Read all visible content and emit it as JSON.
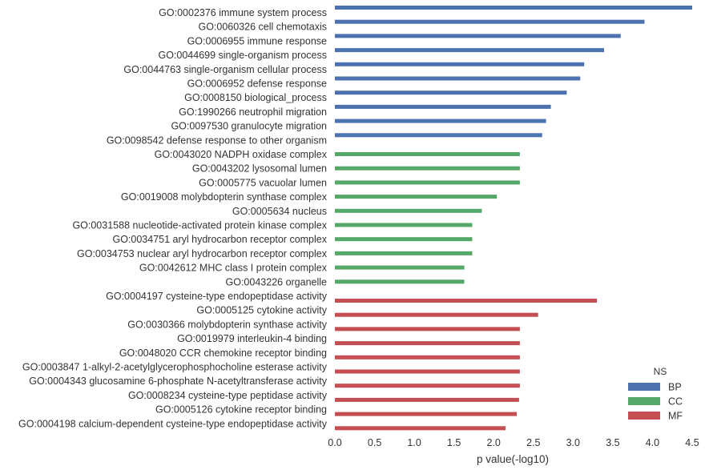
{
  "chart_data": {
    "type": "bar",
    "orientation": "horizontal",
    "xlabel": "p value(-log10)",
    "ylabel": "",
    "xlim": [
      0,
      4.5
    ],
    "xticks": [
      "0.0",
      "0.5",
      "1.0",
      "1.5",
      "2.0",
      "2.5",
      "3.0",
      "3.5",
      "4.0",
      "4.5"
    ],
    "grid": false,
    "legend": {
      "title": "NS",
      "placement": "bottom-right",
      "entries": [
        {
          "name": "BP",
          "color": "#4c72b0"
        },
        {
          "name": "CC",
          "color": "#55a868"
        },
        {
          "name": "MF",
          "color": "#c44e52"
        }
      ]
    },
    "bars": [
      {
        "label": "GO:0002376 immune system process",
        "value": 4.5,
        "group": "BP"
      },
      {
        "label": "GO:0060326 cell chemotaxis",
        "value": 3.9,
        "group": "BP"
      },
      {
        "label": "GO:0006955 immune response",
        "value": 3.6,
        "group": "BP"
      },
      {
        "label": "GO:0044699 single-organism process",
        "value": 3.39,
        "group": "BP"
      },
      {
        "label": "GO:0044763 single-organism cellular process",
        "value": 3.14,
        "group": "BP"
      },
      {
        "label": "GO:0006952 defense response",
        "value": 3.09,
        "group": "BP"
      },
      {
        "label": "GO:0008150 biological_process",
        "value": 2.92,
        "group": "BP"
      },
      {
        "label": "GO:1990266 neutrophil migration",
        "value": 2.72,
        "group": "BP"
      },
      {
        "label": "GO:0097530 granulocyte migration",
        "value": 2.66,
        "group": "BP"
      },
      {
        "label": "GO:0098542 defense response to other organism",
        "value": 2.61,
        "group": "BP"
      },
      {
        "label": "GO:0043020 NADPH oxidase complex",
        "value": 2.33,
        "group": "CC"
      },
      {
        "label": "GO:0043202 lysosomal lumen",
        "value": 2.33,
        "group": "CC"
      },
      {
        "label": "GO:0005775 vacuolar lumen",
        "value": 2.33,
        "group": "CC"
      },
      {
        "label": "GO:0019008 molybdopterin synthase complex",
        "value": 2.04,
        "group": "CC"
      },
      {
        "label": "GO:0005634 nucleus",
        "value": 1.85,
        "group": "CC"
      },
      {
        "label": "GO:0031588 nucleotide-activated protein kinase complex",
        "value": 1.73,
        "group": "CC"
      },
      {
        "label": "GO:0034751 aryl hydrocarbon receptor complex",
        "value": 1.73,
        "group": "CC"
      },
      {
        "label": "GO:0034753 nuclear aryl hydrocarbon receptor complex",
        "value": 1.73,
        "group": "CC"
      },
      {
        "label": "GO:0042612 MHC class I protein complex",
        "value": 1.63,
        "group": "CC"
      },
      {
        "label": "GO:0043226 organelle",
        "value": 1.63,
        "group": "CC"
      },
      {
        "label": "GO:0004197 cysteine-type endopeptidase activity",
        "value": 3.3,
        "group": "MF"
      },
      {
        "label": "GO:0005125 cytokine activity",
        "value": 2.56,
        "group": "MF"
      },
      {
        "label": "GO:0030366 molybdopterin synthase activity",
        "value": 2.33,
        "group": "MF"
      },
      {
        "label": "GO:0019979 interleukin-4 binding",
        "value": 2.33,
        "group": "MF"
      },
      {
        "label": "GO:0048020 CCR chemokine receptor binding",
        "value": 2.33,
        "group": "MF"
      },
      {
        "label": "GO:0003847 1-alkyl-2-acetylglycerophosphocholine esterase activity",
        "value": 2.33,
        "group": "MF"
      },
      {
        "label": "GO:0004343 glucosamine 6-phosphate N-acetyltransferase activity",
        "value": 2.33,
        "group": "MF"
      },
      {
        "label": "GO:0008234 cysteine-type peptidase activity",
        "value": 2.32,
        "group": "MF"
      },
      {
        "label": "GO:0005126 cytokine receptor binding",
        "value": 2.29,
        "group": "MF"
      },
      {
        "label": "GO:0004198 calcium-dependent cysteine-type endopeptidase activity",
        "value": 2.15,
        "group": "MF"
      }
    ]
  }
}
